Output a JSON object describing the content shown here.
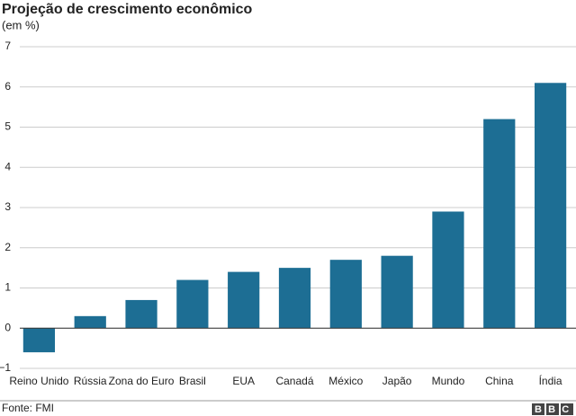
{
  "chart_data": {
    "type": "bar",
    "title": "Projeção de crescimento econômico",
    "subtitle": "(em %)",
    "source": "Fonte: FMI",
    "logo": "BBC",
    "categories": [
      "Reino Unido",
      "Rússia",
      "Zona do Euro",
      "Brasil",
      "EUA",
      "Canadá",
      "México",
      "Japão",
      "Mundo",
      "China",
      "Índia"
    ],
    "values": [
      -0.6,
      0.3,
      0.7,
      1.2,
      1.4,
      1.5,
      1.7,
      1.8,
      2.9,
      5.2,
      6.1
    ],
    "color": "#1d6e94",
    "ylim": [
      -1,
      7
    ],
    "yticks": [
      {
        "value": -1,
        "label": "−1"
      },
      0,
      1,
      2,
      3,
      4,
      5,
      6,
      7
    ],
    "grid": true
  }
}
